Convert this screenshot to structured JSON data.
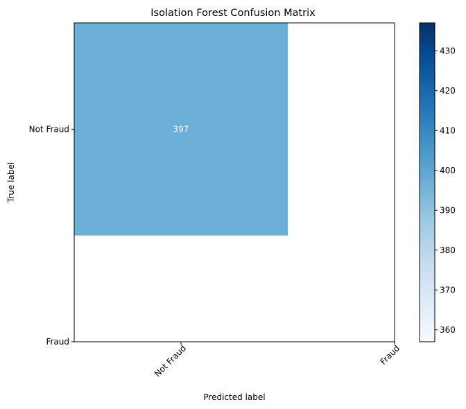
{
  "chart_data": {
    "type": "heatmap",
    "title": "Isolation Forest Confusion Matrix",
    "xlabel": "Predicted label",
    "ylabel": "True label",
    "x_categories": [
      "Not Fraud",
      "Fraud"
    ],
    "y_categories": [
      "Not Fraud",
      "Fraud"
    ],
    "cell_colors": [
      "#6baed6"
    ],
    "cells": [
      {
        "row": 0,
        "col": 0,
        "value": 397,
        "label": "397",
        "label_color": "#ffffff"
      }
    ],
    "colorbar": {
      "cmap": "Blues",
      "range": [
        357,
        437
      ],
      "ticks": [
        360,
        370,
        380,
        390,
        400,
        410,
        420,
        430
      ],
      "tick_labels": [
        "360",
        "370",
        "380",
        "390",
        "400",
        "410",
        "420",
        "430"
      ],
      "color_low": "#f7fbff",
      "color_high": "#08306b"
    }
  }
}
